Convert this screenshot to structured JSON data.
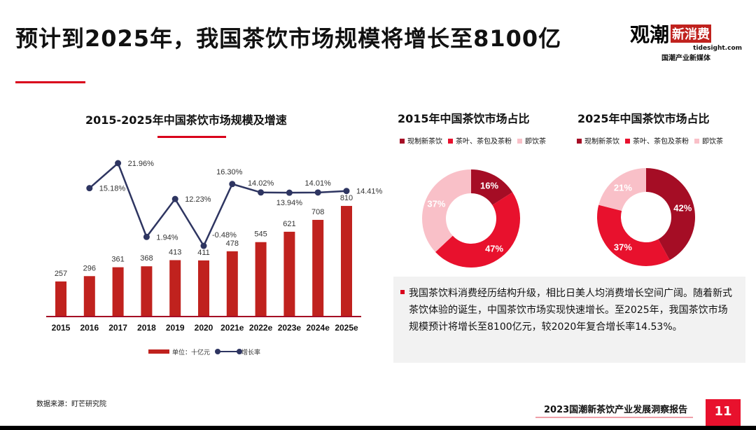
{
  "header": {
    "title": "预计到2025年，我国茶饮市场规模将增长至8100亿",
    "logo_text": "观潮新消费",
    "logo_url": "tidesight.com",
    "logo_tagline": "国潮产业新媒体"
  },
  "chart_data": [
    {
      "type": "bar+line",
      "title": "2015-2025年中国茶饮市场规模及增速",
      "categories": [
        "2015",
        "2016",
        "2017",
        "2018",
        "2019",
        "2020",
        "2021e",
        "2022e",
        "2023e",
        "2024e",
        "2025e"
      ],
      "series": [
        {
          "name": "单位：十亿元",
          "type": "bar",
          "values": [
            257,
            296,
            361,
            368,
            413,
            411,
            478,
            545,
            621,
            708,
            810
          ],
          "labels": [
            "257",
            "296",
            "361",
            "368",
            "413",
            "411",
            "478",
            "545",
            "621",
            "708",
            "810"
          ],
          "color": "#c0221e"
        },
        {
          "name": "增长率",
          "type": "line",
          "values": [
            null,
            15.18,
            21.96,
            1.94,
            12.23,
            -0.48,
            16.3,
            14.02,
            13.94,
            14.01,
            14.41
          ],
          "labels": [
            "",
            "15.18%",
            "21.96%",
            "1.94%",
            "12.23%",
            "-0.48%",
            "16.30%",
            "14.02%",
            "13.94%",
            "14.01%",
            "14.41%"
          ],
          "color": "#2e3561"
        }
      ],
      "legend": "bottom",
      "grid": false
    },
    {
      "type": "pie",
      "donut": true,
      "title": "2015年中国茶饮市场占比",
      "categories": [
        "现制新茶饮",
        "茶叶、茶包及茶粉",
        "即饮茶"
      ],
      "values": [
        16,
        47,
        37
      ],
      "labels": [
        "16%",
        "47%",
        "37%"
      ],
      "colors": [
        "#a50d25",
        "#e8112d",
        "#f9c0c8"
      ]
    },
    {
      "type": "pie",
      "donut": true,
      "title": "2025年中国茶饮市场占比",
      "categories": [
        "现制新茶饮",
        "茶叶、茶包及茶粉",
        "即饮茶"
      ],
      "values": [
        42,
        37,
        21
      ],
      "labels": [
        "42%",
        "37%",
        "21%"
      ],
      "colors": [
        "#a50d25",
        "#e8112d",
        "#f9c0c8"
      ]
    }
  ],
  "summary": "我国茶饮料消费经历结构升级，相比日美人均消费增长空间广阔。随着新式茶饮体验的诞生，中国茶饮市场实现快速增长。至2025年，我国茶饮市场规模预计将增长至8100亿元，较2020年复合增长率14.53%。",
  "footer": {
    "source": "数据来源：盯芒研究院",
    "report": "2023国潮新茶饮产业发展洞察报告",
    "page": "11"
  }
}
